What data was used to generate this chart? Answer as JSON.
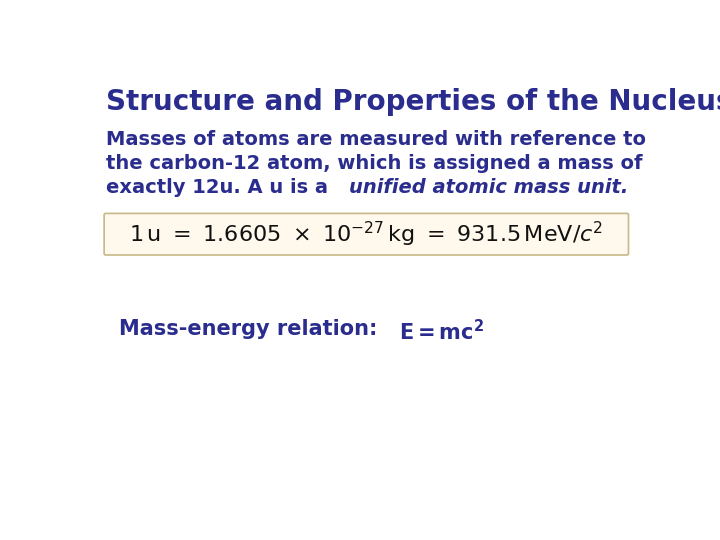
{
  "title": "Structure and Properties of the Nucleus",
  "title_color": "#2b2d8e",
  "title_fontsize": 20,
  "body_color": "#2b2d8e",
  "background_color": "#ffffff",
  "paragraph1_line1": "Masses of atoms are measured with reference to",
  "paragraph1_line2": "the carbon-12 atom, which is assigned a mass of",
  "paragraph1_line3_normal": "exactly 12u. A u is a ",
  "paragraph1_line3_italic": "unified atomic mass unit.",
  "paragraph1_fontsize": 14,
  "equation_box_color": "#fef9ec",
  "equation_box_border": "#c8b888",
  "equation_fontsize": 16,
  "equation_color": "#111111",
  "mass_energy_label": "Mass-energy relation:   E = mc",
  "mass_energy_fontsize": 15,
  "mass_energy_color": "#2b2d8e"
}
